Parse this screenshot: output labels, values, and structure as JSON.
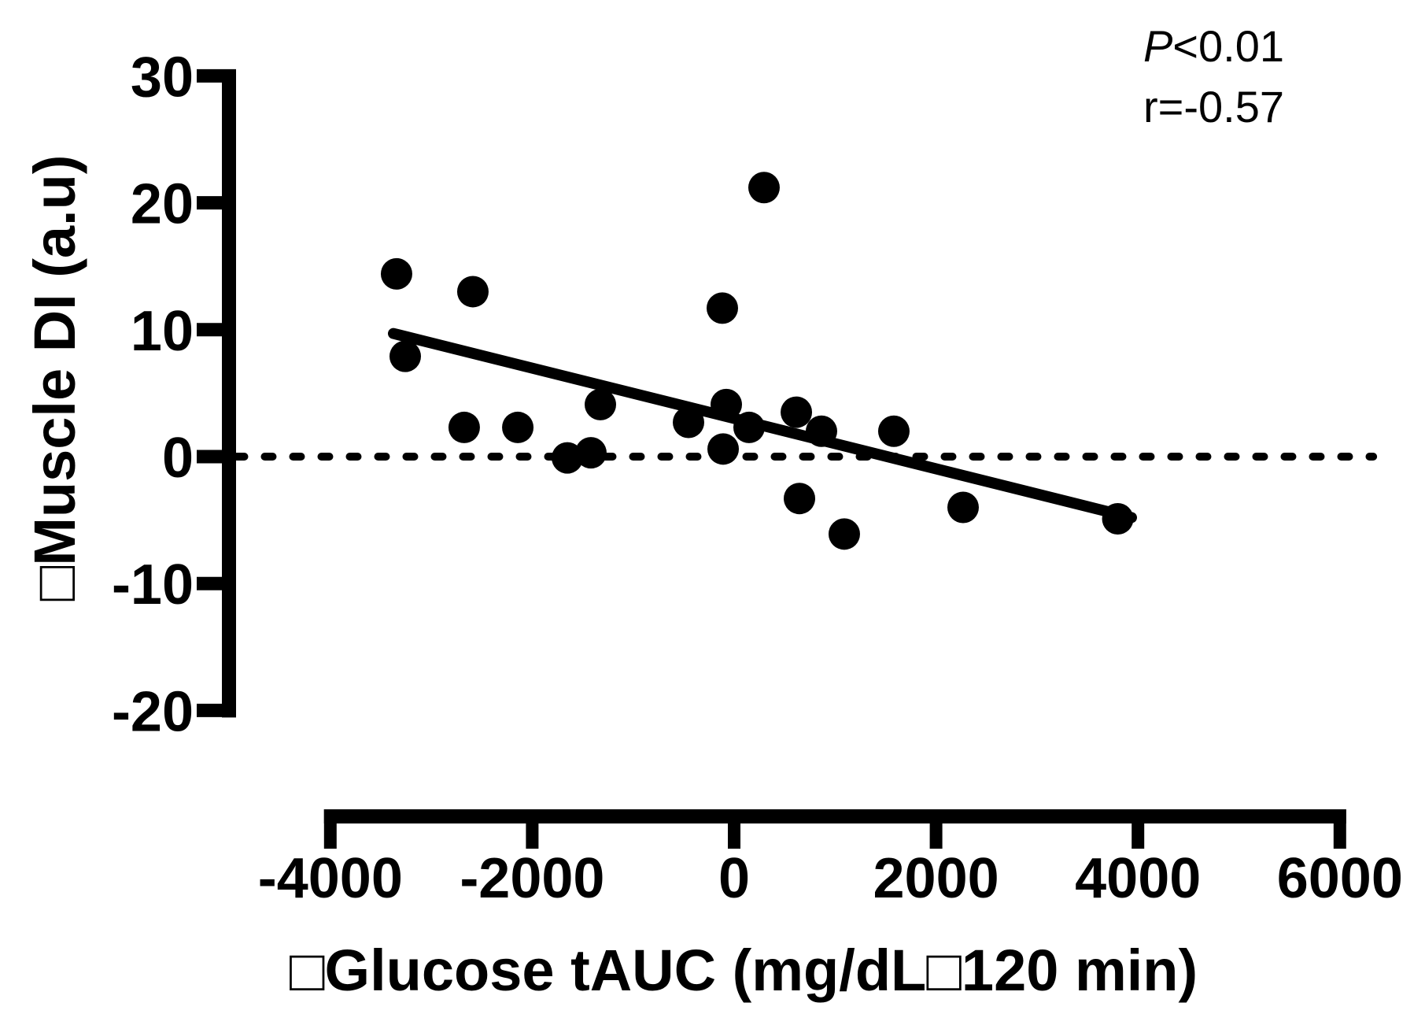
{
  "chart_data": {
    "type": "scatter",
    "title": "",
    "xlabel": "□Glucose tAUC (mg/dL□120 min)",
    "ylabel": "□Muscle DI (a.u)",
    "x_ticks": [
      -4000,
      -2000,
      0,
      2000,
      4000,
      6000
    ],
    "x_tick_labels": [
      "-4000",
      "-2000",
      "0",
      "2000",
      "4000",
      "6000"
    ],
    "y_ticks": [
      30,
      20,
      10,
      0,
      -10,
      -20
    ],
    "y_tick_labels": [
      "30",
      "20",
      "10",
      "0",
      "-10",
      "-20"
    ],
    "xlim": [
      -5000,
      6330
    ],
    "ylim": [
      -28,
      30
    ],
    "grid": false,
    "legend": "none",
    "marker": {
      "shape": "circle",
      "color": "#000000",
      "radius_px": 20
    },
    "points": [
      [
        -3344,
        14.4
      ],
      [
        -3258,
        7.9
      ],
      [
        -2674,
        2.3
      ],
      [
        -2588,
        13.0
      ],
      [
        -2143,
        2.3
      ],
      [
        -1652,
        -0.1
      ],
      [
        -1419,
        0.3
      ],
      [
        -1325,
        4.1
      ],
      [
        -452,
        2.7
      ],
      [
        -117,
        11.7
      ],
      [
        -109,
        0.6
      ],
      [
        -78,
        4.1
      ],
      [
        148,
        2.3
      ],
      [
        296,
        21.2
      ],
      [
        616,
        3.5
      ],
      [
        647,
        -3.3
      ],
      [
        865,
        2.0
      ],
      [
        1091,
        -6.1
      ],
      [
        1582,
        2.0
      ],
      [
        2268,
        -4.0
      ],
      [
        3800,
        -4.9
      ]
    ],
    "regression_line": {
      "x1": -3375,
      "y1": 9.7,
      "x2": 3936,
      "y2": -4.8
    },
    "zero_reference_line": {
      "y": 0,
      "x1": -4930,
      "x2": 6330,
      "style": "dashed"
    },
    "annotation": {
      "p_label": "P",
      "p_value": "<0.01",
      "r_text": "r=-0.57"
    },
    "colors": {
      "foreground": "#000000",
      "background": "#ffffff"
    }
  }
}
